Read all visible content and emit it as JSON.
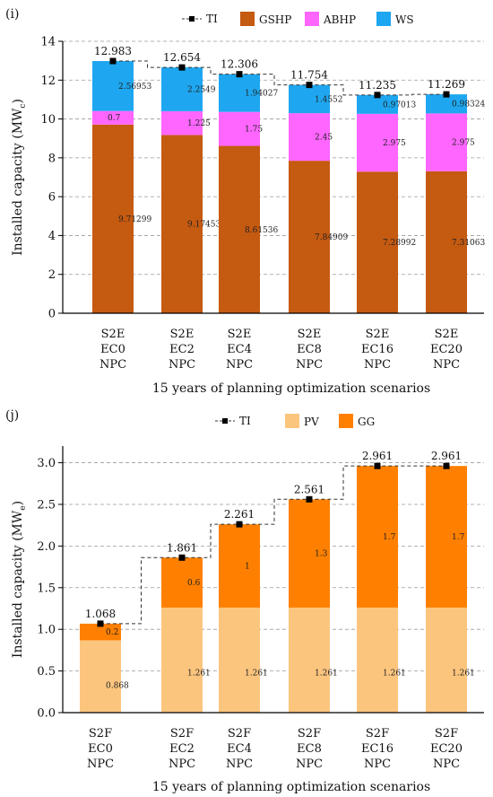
{
  "charts": [
    {
      "type": "bar",
      "panel_label": "(i)",
      "categories": [
        "S2E\nEC0\nNPC",
        "S2E\nEC2\nNPC",
        "S2E\nEC4\nNPC",
        "S2E\nEC8\nNPC",
        "S2E\nEC16\nNPC",
        "S2E\nEC20\nNPC"
      ],
      "series": [
        {
          "name": "GSHP",
          "color": "#c55a11",
          "values": [
            9.71299,
            9.17453,
            8.61536,
            7.84909,
            7.28992,
            7.31063
          ],
          "labels": [
            "9.71299",
            "9.17453",
            "8.61536",
            "7.84909",
            "7.28992",
            "7.31063"
          ]
        },
        {
          "name": "ABHP",
          "color": "#ff66ff",
          "values": [
            0.7,
            1.225,
            1.75,
            2.45,
            2.975,
            2.975
          ],
          "labels": [
            "0.7",
            "1.225",
            "1.75",
            "2.45",
            "2.975",
            "2.975"
          ]
        },
        {
          "name": "WS",
          "color": "#1ea7f0",
          "values": [
            2.56953,
            2.2549,
            1.94027,
            1.4552,
            0.97013,
            0.98324
          ],
          "labels": [
            "2.56953",
            "2.2549",
            "1.94027",
            "1.4552",
            "0.97013",
            "0.98324"
          ]
        }
      ],
      "total": {
        "name": "TI",
        "values": [
          12.983,
          12.654,
          12.306,
          11.754,
          11.235,
          11.269
        ],
        "labels": [
          "12.983",
          "12.654",
          "12.306",
          "11.754",
          "11.235",
          "11.269"
        ]
      },
      "ylabel_main": "Installed capacity (MW",
      "ylabel_sub": "c",
      "ylabel_close": ")",
      "xlabel": "15 years of planning optimization scenarios",
      "ylim": [
        0,
        14
      ],
      "yticks": [
        "0",
        "2",
        "4",
        "6",
        "8",
        "10",
        "12",
        "14"
      ],
      "grid": true,
      "legend": "top"
    },
    {
      "type": "bar",
      "panel_label": "(j)",
      "categories": [
        "S2F\nEC0\nNPC",
        "S2F\nEC2\nNPC",
        "S2F\nEC4\nNPC",
        "S2F\nEC8\nNPC",
        "S2F\nEC16\nNPC",
        "S2F\nEC20\nNPC"
      ],
      "series": [
        {
          "name": "PV",
          "color": "#fcc57e",
          "values": [
            0.868,
            1.261,
            1.261,
            1.261,
            1.261,
            1.261
          ],
          "labels": [
            "0.868",
            "1.261",
            "1.261",
            "1.261",
            "1.261",
            "1.261"
          ]
        },
        {
          "name": "GG",
          "color": "#ff8000",
          "values": [
            0.2,
            0.6,
            1,
            1.3,
            1.7,
            1.7
          ],
          "labels": [
            "0.2",
            "0.6",
            "1",
            "1.3",
            "1.7",
            "1.7"
          ]
        }
      ],
      "total": {
        "name": "TI",
        "values": [
          1.068,
          1.861,
          2.261,
          2.561,
          2.961,
          2.961
        ],
        "labels": [
          "1.068",
          "1.861",
          "2.261",
          "2.561",
          "2.961",
          "2.961"
        ]
      },
      "ylabel_main": "Installed capacity (MW",
      "ylabel_sub": "e",
      "ylabel_close": ")",
      "xlabel": "15 years of planning optimization scenarios",
      "ylim": [
        0,
        3.2
      ],
      "yticks": [
        "0.0",
        "0.5",
        "1.0",
        "1.5",
        "2.0",
        "2.5",
        "3.0"
      ],
      "grid": true,
      "legend": "top"
    }
  ]
}
